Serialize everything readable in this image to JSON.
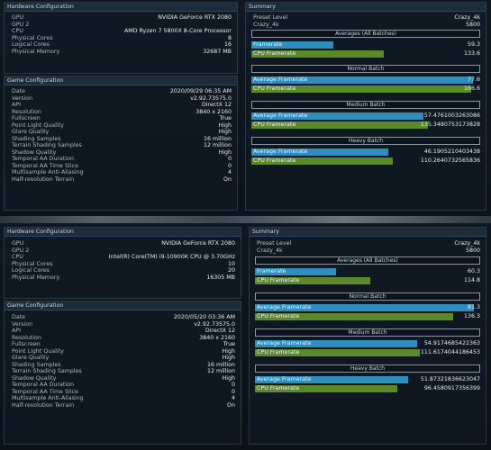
{
  "top": {
    "hw": {
      "title": "Hardware Configuration",
      "rows": [
        {
          "k": "GPU",
          "v": "NVIDIA GeForce RTX 2080"
        },
        {
          "k": "GPU 2",
          "v": ""
        },
        {
          "k": "CPU",
          "v": "AMD Ryzen 7 5800X 8-Core Processor"
        },
        {
          "k": "Physical Cores",
          "v": "8"
        },
        {
          "k": "Logical Cores",
          "v": "16"
        },
        {
          "k": "Physical Memory",
          "v": "32687 MB"
        }
      ]
    },
    "game": {
      "title": "Game Configuration",
      "rows": [
        {
          "k": "Date",
          "v": "2020/09/29 06:35 AM"
        },
        {
          "k": "Version",
          "v": "v2.92.73575.0"
        },
        {
          "k": "API",
          "v": "DirectX 12"
        },
        {
          "k": "Resolution",
          "v": "3840 x 2160"
        },
        {
          "k": "Fullscreen",
          "v": "True"
        },
        {
          "k": "Point Light Quality",
          "v": "High"
        },
        {
          "k": "Glare Quality",
          "v": "High"
        },
        {
          "k": "Shading Samples",
          "v": "16 million"
        },
        {
          "k": "Terrain Shading Samples",
          "v": "12 million"
        },
        {
          "k": "Shadow Quality",
          "v": "High"
        },
        {
          "k": "Temporal AA Duration",
          "v": "0"
        },
        {
          "k": "Temporal AA Time Slice",
          "v": "0"
        },
        {
          "k": "Multisample Anti-Aliasing",
          "v": "4"
        },
        {
          "k": "Half-resolution Terrain",
          "v": "On"
        }
      ]
    },
    "summary": {
      "title": "Summary",
      "preset_label": "Preset Level",
      "preset_value": "Crazy_4k",
      "crazy_label": "Crazy_4k",
      "crazy_value": "5800",
      "averages": "Averages (All Batches)",
      "avg_fr_label": "Framerate",
      "avg_fr": "59.3",
      "avg_fr_frac": 0.36,
      "avg_cpu_label": "CPU Framerate",
      "avg_cpu": "133.6",
      "avg_cpu_frac": 0.58,
      "normal": "Normal Batch",
      "normal_fr_label": "Average Framerate",
      "normal_fr": "77.6",
      "normal_fr_frac": 0.97,
      "normal_cpu_label": "CPU Framerate",
      "normal_cpu": "166.6",
      "normal_cpu_frac": 0.96,
      "medium": "Medium Batch",
      "medium_fr_label": "Average Framerate",
      "medium_fr": "57.4761003263086",
      "medium_fr_frac": 0.75,
      "medium_cpu_label": "CPU Framerate",
      "medium_cpu": "135.3480753173828",
      "medium_cpu_frac": 0.77,
      "heavy": "Heavy Batch",
      "heavy_fr_label": "Average Framerate",
      "heavy_fr": "46.1905210403438",
      "heavy_fr_frac": 0.6,
      "heavy_cpu_label": "CPU Framerate",
      "heavy_cpu": "110.2640732565836",
      "heavy_cpu_frac": 0.62
    }
  },
  "bottom": {
    "hw": {
      "title": "Hardware Configuration",
      "rows": [
        {
          "k": "GPU",
          "v": "NVIDIA GeForce RTX 2080"
        },
        {
          "k": "GPU 2",
          "v": ""
        },
        {
          "k": "CPU",
          "v": "Intel(R) Core(TM) i9-10900K CPU @ 3.70GHz"
        },
        {
          "k": "Physical Cores",
          "v": "10"
        },
        {
          "k": "Logical Cores",
          "v": "20"
        },
        {
          "k": "Physical Memory",
          "v": "16305 MB"
        }
      ]
    },
    "game": {
      "title": "Game Configuration",
      "rows": [
        {
          "k": "Date",
          "v": "2020/05/20 03:36 AM"
        },
        {
          "k": "Version",
          "v": "v2.92.73575.0"
        },
        {
          "k": "API",
          "v": "DirectX 12"
        },
        {
          "k": "Resolution",
          "v": "3840 x 2160"
        },
        {
          "k": "Fullscreen",
          "v": "True"
        },
        {
          "k": "Point Light Quality",
          "v": "High"
        },
        {
          "k": "Glare Quality",
          "v": "High"
        },
        {
          "k": "Shading Samples",
          "v": "16 million"
        },
        {
          "k": "Terrain Shading Samples",
          "v": "12 million"
        },
        {
          "k": "Shadow Quality",
          "v": "High"
        },
        {
          "k": "Temporal AA Duration",
          "v": "0"
        },
        {
          "k": "Temporal AA Time Slice",
          "v": "0"
        },
        {
          "k": "Multisample Anti-Aliasing",
          "v": "4"
        },
        {
          "k": "Half-resolution Terrain",
          "v": "On"
        }
      ]
    },
    "summary": {
      "title": "Summary",
      "preset_label": "Preset Level",
      "preset_value": "Crazy_4k",
      "crazy_label": "Crazy_4k",
      "crazy_value": "5800",
      "averages": "Averages (All Batches)",
      "avg_fr_label": "Framerate",
      "avg_fr": "60.3",
      "avg_fr_frac": 0.36,
      "avg_cpu_label": "CPU Framerate",
      "avg_cpu": "114.8",
      "avg_cpu_frac": 0.51,
      "normal": "Normal Batch",
      "normal_fr_label": "Average Framerate",
      "normal_fr": "81.3",
      "normal_fr_frac": 0.97,
      "normal_cpu_label": "CPU Framerate",
      "normal_cpu": "136.3",
      "normal_cpu_frac": 0.88,
      "medium": "Medium Batch",
      "medium_fr_label": "Average Framerate",
      "medium_fr": "54.9174685422363",
      "medium_fr_frac": 0.72,
      "medium_cpu_label": "CPU Framerate",
      "medium_cpu": "111.6174044186453",
      "medium_cpu_frac": 0.73,
      "heavy": "Heavy Batch",
      "heavy_fr_label": "Average Framerate",
      "heavy_fr": "51.87321836623047",
      "heavy_fr_frac": 0.68,
      "heavy_cpu_label": "CPU Framerate",
      "heavy_cpu": "96.4580917356399",
      "heavy_cpu_frac": 0.63
    }
  }
}
